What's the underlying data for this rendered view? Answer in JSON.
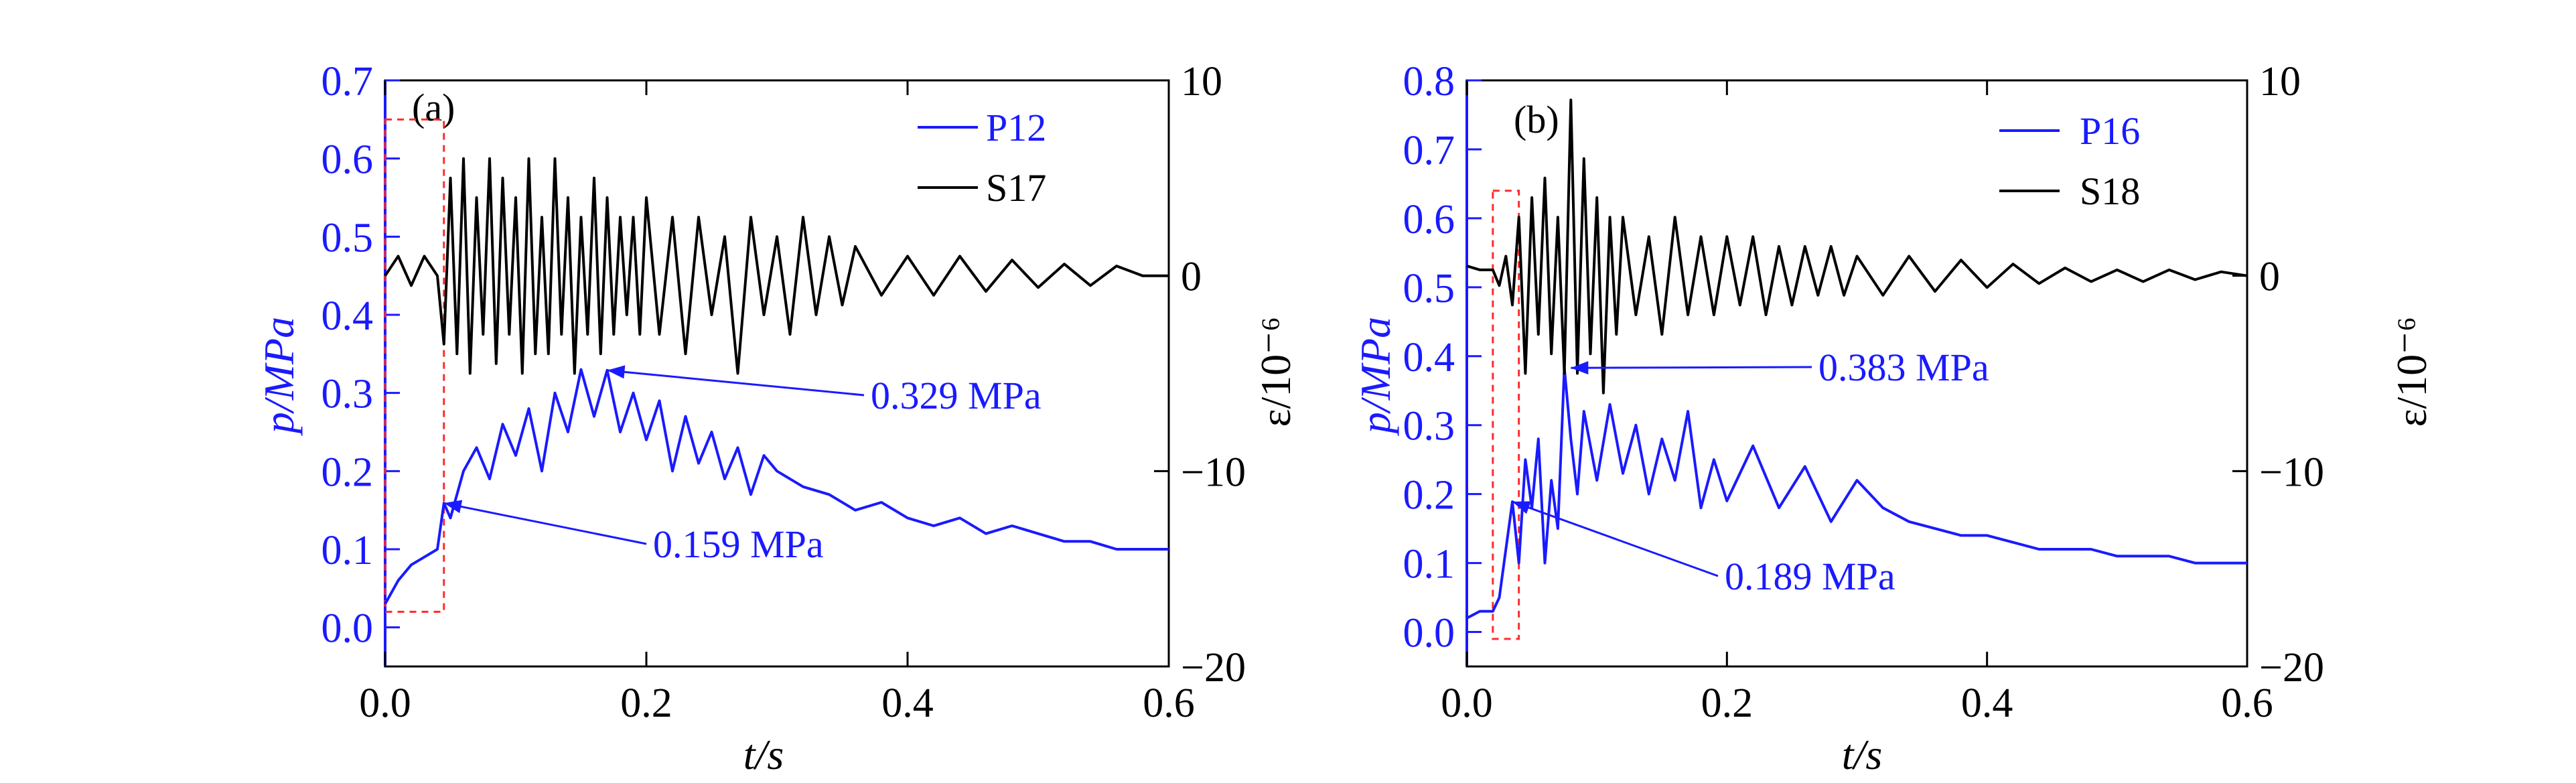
{
  "colors": {
    "pressure": "#1a1aff",
    "strain": "#000000",
    "highlight": "#ff2a2a",
    "axis_left": "#1a1aff"
  },
  "chart_data": [
    {
      "type": "line",
      "panel_label": "(a)",
      "xlabel": "t/s",
      "ylabel_left": "p/MPa",
      "ylabel_right": "ε/10⁻⁶",
      "xlim": [
        0,
        0.6
      ],
      "ylim_left": [
        -0.05,
        0.7
      ],
      "ylim_right": [
        -20,
        10
      ],
      "x_ticks": [
        "0.0",
        "0.2",
        "0.4",
        "0.6"
      ],
      "y_left_ticks": [
        "0.0",
        "0.1",
        "0.2",
        "0.3",
        "0.4",
        "0.5",
        "0.6",
        "0.7"
      ],
      "y_right_ticks": [
        "10",
        "0",
        "−10",
        "−20"
      ],
      "grid": false,
      "legend_position": "top-right",
      "series": [
        {
          "name": "P12",
          "axis": "left",
          "color": "#1a1aff",
          "x": [
            0.0,
            0.01,
            0.02,
            0.03,
            0.04,
            0.045,
            0.05,
            0.06,
            0.07,
            0.08,
            0.09,
            0.1,
            0.11,
            0.12,
            0.13,
            0.14,
            0.15,
            0.16,
            0.17,
            0.18,
            0.19,
            0.2,
            0.21,
            0.22,
            0.23,
            0.24,
            0.25,
            0.26,
            0.27,
            0.28,
            0.29,
            0.3,
            0.32,
            0.34,
            0.36,
            0.38,
            0.4,
            0.42,
            0.44,
            0.46,
            0.48,
            0.5,
            0.52,
            0.54,
            0.56,
            0.58,
            0.6
          ],
          "y": [
            0.03,
            0.06,
            0.08,
            0.09,
            0.1,
            0.159,
            0.14,
            0.2,
            0.23,
            0.19,
            0.26,
            0.22,
            0.28,
            0.2,
            0.3,
            0.25,
            0.33,
            0.27,
            0.329,
            0.25,
            0.3,
            0.24,
            0.29,
            0.2,
            0.27,
            0.21,
            0.25,
            0.19,
            0.23,
            0.17,
            0.22,
            0.2,
            0.18,
            0.17,
            0.15,
            0.16,
            0.14,
            0.13,
            0.14,
            0.12,
            0.13,
            0.12,
            0.11,
            0.11,
            0.1,
            0.1,
            0.1
          ]
        },
        {
          "name": "S17",
          "axis": "right",
          "color": "#000000",
          "x": [
            0.0,
            0.01,
            0.02,
            0.03,
            0.04,
            0.045,
            0.05,
            0.055,
            0.06,
            0.065,
            0.07,
            0.075,
            0.08,
            0.085,
            0.09,
            0.095,
            0.1,
            0.105,
            0.11,
            0.115,
            0.12,
            0.125,
            0.13,
            0.135,
            0.14,
            0.145,
            0.15,
            0.155,
            0.16,
            0.165,
            0.17,
            0.175,
            0.18,
            0.185,
            0.19,
            0.195,
            0.2,
            0.21,
            0.22,
            0.23,
            0.24,
            0.25,
            0.26,
            0.27,
            0.28,
            0.29,
            0.3,
            0.31,
            0.32,
            0.33,
            0.34,
            0.35,
            0.36,
            0.38,
            0.4,
            0.42,
            0.44,
            0.46,
            0.48,
            0.5,
            0.52,
            0.54,
            0.56,
            0.58,
            0.6
          ],
          "y": [
            0,
            1,
            -0.5,
            1,
            0,
            -3.5,
            5,
            -4,
            6,
            -5,
            4,
            -3,
            6,
            -4.5,
            5,
            -3,
            4,
            -5,
            6,
            -4,
            3,
            -4,
            6,
            -3,
            4,
            -5,
            3,
            -3,
            5,
            -4,
            4,
            -3,
            3,
            -2,
            3,
            -3,
            4,
            -3,
            3,
            -4,
            3,
            -2,
            2,
            -5,
            3,
            -2,
            2,
            -3,
            3,
            -2,
            2,
            -1.5,
            1.5,
            -1,
            1,
            -1,
            1,
            -0.8,
            0.8,
            -0.6,
            0.6,
            -0.5,
            0.5,
            0,
            0
          ]
        }
      ],
      "annotations": [
        {
          "text": "0.329 MPa",
          "x": 0.17,
          "y": 0.329
        },
        {
          "text": "0.159 MPa",
          "x": 0.045,
          "y": 0.159
        }
      ]
    },
    {
      "type": "line",
      "panel_label": "(b)",
      "xlabel": "t/s",
      "ylabel_left": "p/MPa",
      "ylabel_right": "ε/10⁻⁶",
      "xlim": [
        0,
        0.6
      ],
      "ylim_left": [
        -0.05,
        0.8
      ],
      "ylim_right": [
        -20,
        10
      ],
      "x_ticks": [
        "0.0",
        "0.2",
        "0.4",
        "0.6"
      ],
      "y_left_ticks": [
        "0.0",
        "0.1",
        "0.2",
        "0.3",
        "0.4",
        "0.5",
        "0.6",
        "0.7",
        "0.8"
      ],
      "y_right_ticks": [
        "10",
        "0",
        "−10",
        "−20"
      ],
      "grid": false,
      "legend_position": "top-right",
      "series": [
        {
          "name": "P16",
          "axis": "left",
          "color": "#1a1aff",
          "x": [
            0.0,
            0.01,
            0.02,
            0.025,
            0.03,
            0.035,
            0.04,
            0.045,
            0.05,
            0.055,
            0.06,
            0.065,
            0.07,
            0.075,
            0.08,
            0.085,
            0.09,
            0.1,
            0.11,
            0.12,
            0.13,
            0.14,
            0.15,
            0.16,
            0.17,
            0.18,
            0.19,
            0.2,
            0.22,
            0.24,
            0.26,
            0.28,
            0.3,
            0.32,
            0.34,
            0.36,
            0.38,
            0.4,
            0.42,
            0.44,
            0.46,
            0.48,
            0.5,
            0.52,
            0.54,
            0.56,
            0.58,
            0.6
          ],
          "y": [
            0.02,
            0.03,
            0.03,
            0.05,
            0.12,
            0.189,
            0.1,
            0.25,
            0.18,
            0.28,
            0.1,
            0.22,
            0.15,
            0.383,
            0.28,
            0.2,
            0.32,
            0.22,
            0.33,
            0.23,
            0.3,
            0.2,
            0.28,
            0.22,
            0.32,
            0.18,
            0.25,
            0.19,
            0.27,
            0.18,
            0.24,
            0.16,
            0.22,
            0.18,
            0.16,
            0.15,
            0.14,
            0.14,
            0.13,
            0.12,
            0.12,
            0.12,
            0.11,
            0.11,
            0.11,
            0.1,
            0.1,
            0.1
          ]
        },
        {
          "name": "S18",
          "axis": "right",
          "color": "#000000",
          "x": [
            0.0,
            0.01,
            0.02,
            0.025,
            0.03,
            0.035,
            0.04,
            0.045,
            0.05,
            0.055,
            0.06,
            0.065,
            0.07,
            0.075,
            0.08,
            0.085,
            0.09,
            0.095,
            0.1,
            0.105,
            0.11,
            0.115,
            0.12,
            0.13,
            0.14,
            0.15,
            0.16,
            0.17,
            0.18,
            0.19,
            0.2,
            0.21,
            0.22,
            0.23,
            0.24,
            0.25,
            0.26,
            0.27,
            0.28,
            0.29,
            0.3,
            0.32,
            0.34,
            0.36,
            0.38,
            0.4,
            0.42,
            0.44,
            0.46,
            0.48,
            0.5,
            0.52,
            0.54,
            0.56,
            0.58,
            0.6
          ],
          "y": [
            0.5,
            0.3,
            0.3,
            -0.5,
            1,
            -1.5,
            3,
            -5,
            4,
            -3,
            5,
            -4,
            3,
            -5,
            9,
            -5,
            6,
            -4,
            4,
            -6,
            3,
            -3,
            3,
            -2,
            2,
            -3,
            3,
            -2,
            2,
            -2,
            2,
            -1.5,
            2,
            -2,
            1.5,
            -1.5,
            1.5,
            -1,
            1.5,
            -1,
            1,
            -1,
            1,
            -0.8,
            0.8,
            -0.6,
            0.6,
            -0.4,
            0.4,
            -0.3,
            0.3,
            -0.3,
            0.3,
            -0.2,
            0.2,
            0
          ]
        }
      ],
      "annotations": [
        {
          "text": "0.383 MPa",
          "x": 0.08,
          "y": 0.383
        },
        {
          "text": "0.189 MPa",
          "x": 0.035,
          "y": 0.189
        }
      ]
    }
  ]
}
